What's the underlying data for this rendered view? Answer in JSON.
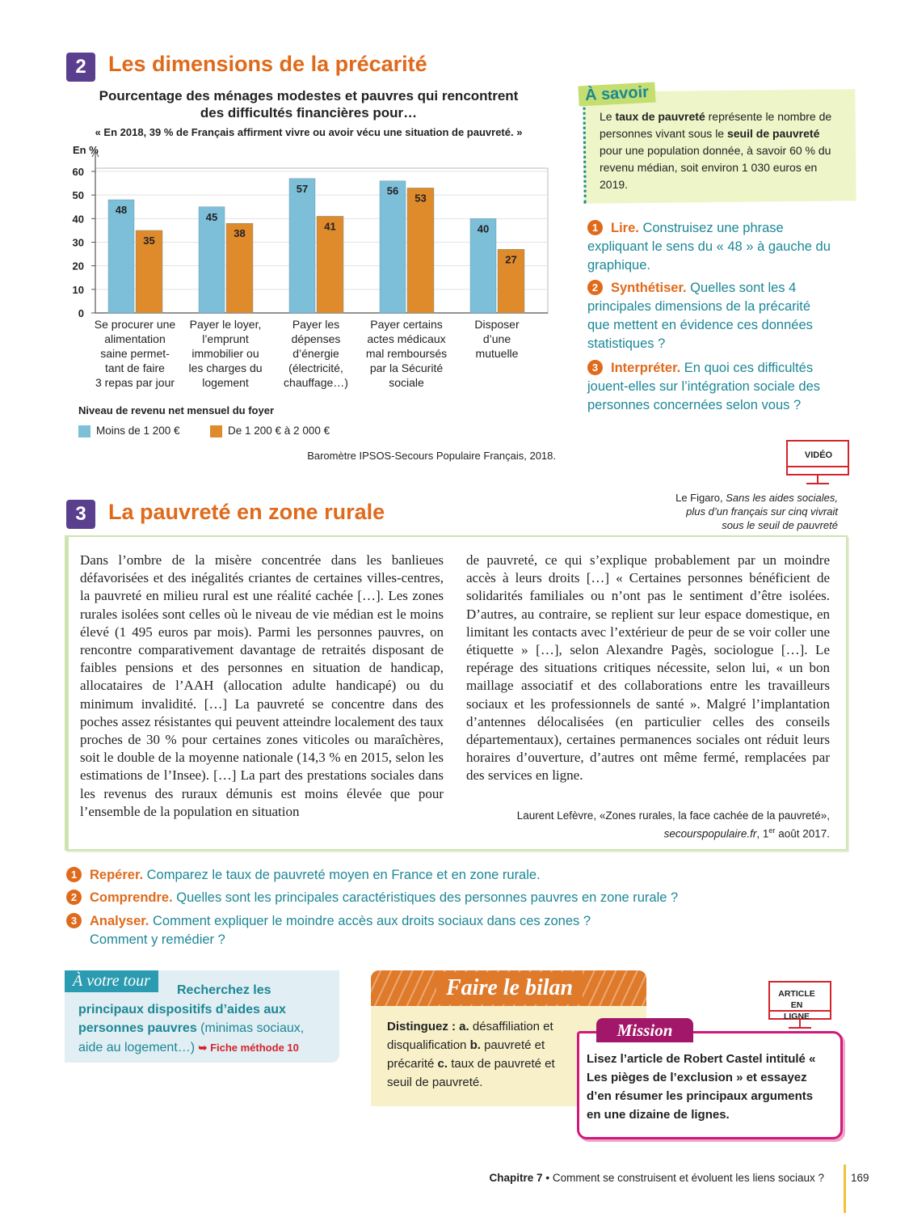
{
  "section2": {
    "number": "2",
    "title": "Les dimensions de la précarité"
  },
  "chart_data": {
    "type": "bar",
    "title": "Pourcentage des ménages modestes et pauvres qui rencontrent des difficultés financières pour…",
    "subtitle": "« En 2018, 39 % de Français affirment vivre ou avoir vécu une situation de pauvreté. »",
    "y_label": "En %",
    "categories": [
      "Se procurer une\nalimentation\nsaine permet-\ntant de faire\n3 repas par jour",
      "Payer le loyer,\nl’emprunt\nimmobilier ou\nles charges du\nlogement",
      "Payer les\ndépenses\nd’énergie\n(électricité,\nchauffage…)",
      "Payer certains\nactes médicaux\nmal remboursés\npar la Sécurité\nsociale",
      "Disposer\nd’une\nmutuelle"
    ],
    "series": [
      {
        "name": "Moins de 1 200 €",
        "color": "#7dbfd9",
        "values": [
          48,
          45,
          57,
          56,
          40
        ]
      },
      {
        "name": "De 1 200 € à 2 000 €",
        "color": "#df8a2b",
        "values": [
          35,
          38,
          41,
          53,
          27
        ]
      }
    ],
    "ylim": [
      0,
      60
    ],
    "yticks": [
      0,
      10,
      20,
      30,
      40,
      50,
      60
    ],
    "grid": true,
    "legend_title": "Niveau de revenu net mensuel du foyer",
    "source": "Baromètre IPSOS-Secours Populaire Français, 2018."
  },
  "a_savoir": {
    "title": "À savoir",
    "text": [
      "Le ",
      "taux de pauvreté",
      " représente le nombre de personnes vivant sous le ",
      "seuil de pauvreté",
      " pour une population donnée, à savoir 60 % du revenu médian, soit environ 1 030 euros en 2019."
    ]
  },
  "questions2": [
    {
      "num": "1",
      "label": "Lire.",
      "text": "Construisez une phrase expliquant le sens du « 48 » à gauche du graphique."
    },
    {
      "num": "2",
      "label": "Synthétiser.",
      "text": "Quelles sont les 4 principales dimensions de la précarité que mettent en évidence ces données statistiques ?"
    },
    {
      "num": "3",
      "label": "Interpréter.",
      "text": "En quoi ces difficultés jouent-elles sur l’intégration sociale des personnes concernées selon vous ?"
    }
  ],
  "video": {
    "label": "VIDÉO",
    "source": "Le Figaro, ",
    "caption": "Sans les aides sociales, plus d’un français sur cinq vivrait sous le seuil de pauvreté"
  },
  "section3": {
    "number": "3",
    "title": "La pauvreté en zone rurale"
  },
  "article": {
    "columns": [
      "Dans l’ombre de la misère concentrée dans les banlieues défavorisées et des inégalités criantes de certaines villes-centres, la pauvreté en milieu rural est une réalité cachée […]. Les zones rurales isolées sont celles où le niveau de vie médian est le moins élevé (1 495 euros par mois). Parmi les personnes pauvres, on rencontre comparativement davantage de retraités disposant de faibles pensions et des personnes en situation de handicap, allocataires de l’AAH (allocation adulte handicapé) ou du minimum invalidité. […] La pauvreté se concentre dans des poches assez résistantes qui peuvent atteindre localement des taux proches de 30 % pour certaines zones viticoles ou maraîchères, soit le double de la moyenne nationale (14,3 % en 2015, selon les estimations de l’Insee). […] La part des prestations sociales dans les revenus des ruraux démunis est moins élevée que pour l’ensemble de la population en situation",
      "de pauvreté, ce qui s’explique probablement par un moindre accès à leurs droits […] « Certaines personnes bénéficient de solidarités familiales ou n’ont pas le sentiment d’être isolées. D’autres, au contraire, se replient sur leur espace domestique, en limitant les contacts avec l’extérieur de peur de se voir coller une étiquette » […], selon Alexandre Pagès, sociologue […]. Le repérage des situations critiques nécessite, selon lui, « un bon maillage associatif et des collaborations entre les travailleurs sociaux et les professionnels de santé ». Malgré l’implantation d’antennes délocalisées (en particulier celles des conseils départementaux), certaines permanences sociales ont réduit leurs horaires d’ouverture, d’autres ont même fermé, remplacées par des services en ligne."
    ],
    "credit": [
      "Laurent Lefèvre, «Zones rurales, la face cachée de la pauvreté», ",
      "secourspopulaire.fr",
      ", 1",
      "er",
      " août 2017."
    ]
  },
  "questions3": [
    {
      "num": "1",
      "label": "Repérer.",
      "text": "Comparez le taux de pauvreté moyen en France et en zone rurale."
    },
    {
      "num": "2",
      "label": "Comprendre.",
      "text": "Quelles sont les principales caractéristiques des personnes pauvres en zone rurale ?"
    },
    {
      "num": "3",
      "label": "Analyser.",
      "text": "Comment expliquer le moindre accès aux droits sociaux dans ces zones ? Comment y remédier ?"
    }
  ],
  "a_votre_tour": {
    "title": "À votre tour",
    "bold": "Recherchez les principaux dispositifs d’aides aux personnes pauvres",
    "text": " (minimas sociaux, aide au logement…)",
    "link": "Fiche méthode 10"
  },
  "bilan": {
    "title": "Faire le bilan",
    "text": [
      "Distinguez : ",
      "a.",
      " désaffiliation et disqualification ",
      "b.",
      " pauvreté et précarité ",
      "c.",
      " taux de pauvreté et seuil de pauvreté."
    ]
  },
  "article_badge": "ARTICLE EN LIGNE",
  "mission": {
    "title": "Mission",
    "text": "Lisez l’article de Robert Castel intitulé « Les pièges de l’exclusion » et essayez d’en résumer les principaux arguments en une dizaine de lignes."
  },
  "footer": {
    "chapter": "Chapitre 7",
    "title": "• Comment se construisent et évoluent les liens sociaux ?",
    "page": "169"
  }
}
